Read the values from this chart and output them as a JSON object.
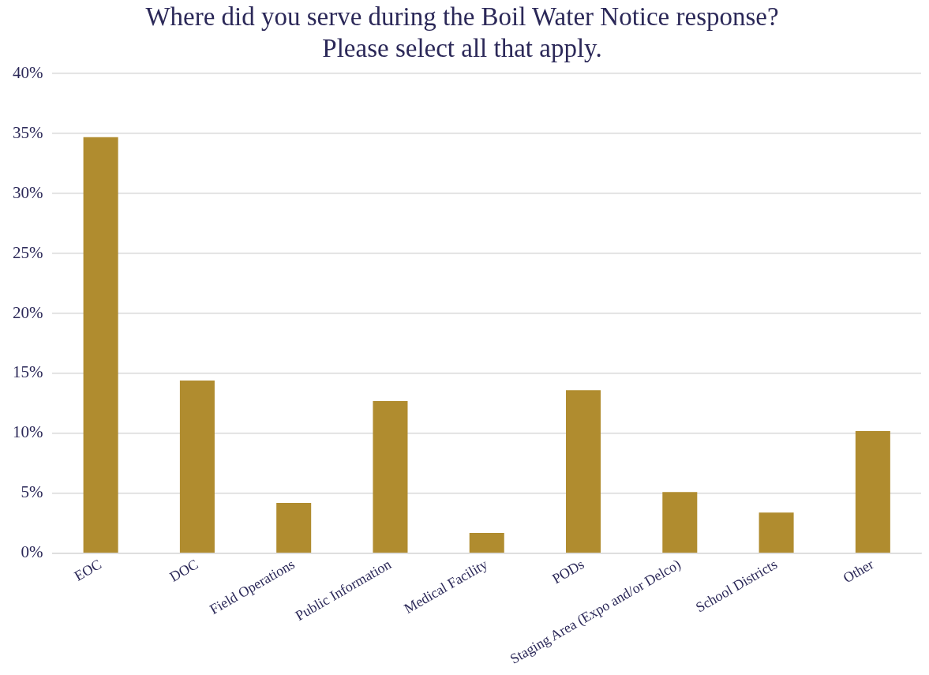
{
  "chart_data": {
    "type": "bar",
    "title": "Where did you serve during the Boil Water Notice response?\nPlease select all that apply.",
    "categories": [
      "EOC",
      "DOC",
      "Field Operations",
      "Public Information",
      "Medical Facility",
      "PODs",
      "Staging Area (Expo and/or Delco)",
      "School Districts",
      "Other"
    ],
    "values": [
      34.7,
      14.4,
      4.2,
      12.7,
      1.7,
      13.6,
      5.1,
      3.4,
      10.2
    ],
    "color": "#b08c2f",
    "ylim": [
      0,
      40
    ],
    "yticks": [
      {
        "value": 0,
        "label": "0%"
      },
      {
        "value": 5,
        "label": "5%"
      },
      {
        "value": 10,
        "label": "10%"
      },
      {
        "value": 15,
        "label": "15%"
      },
      {
        "value": 20,
        "label": "20%"
      },
      {
        "value": 25,
        "label": "25%"
      },
      {
        "value": 30,
        "label": "30%"
      },
      {
        "value": 35,
        "label": "35%"
      },
      {
        "value": 40,
        "label": "40%"
      }
    ],
    "grid": "y"
  }
}
